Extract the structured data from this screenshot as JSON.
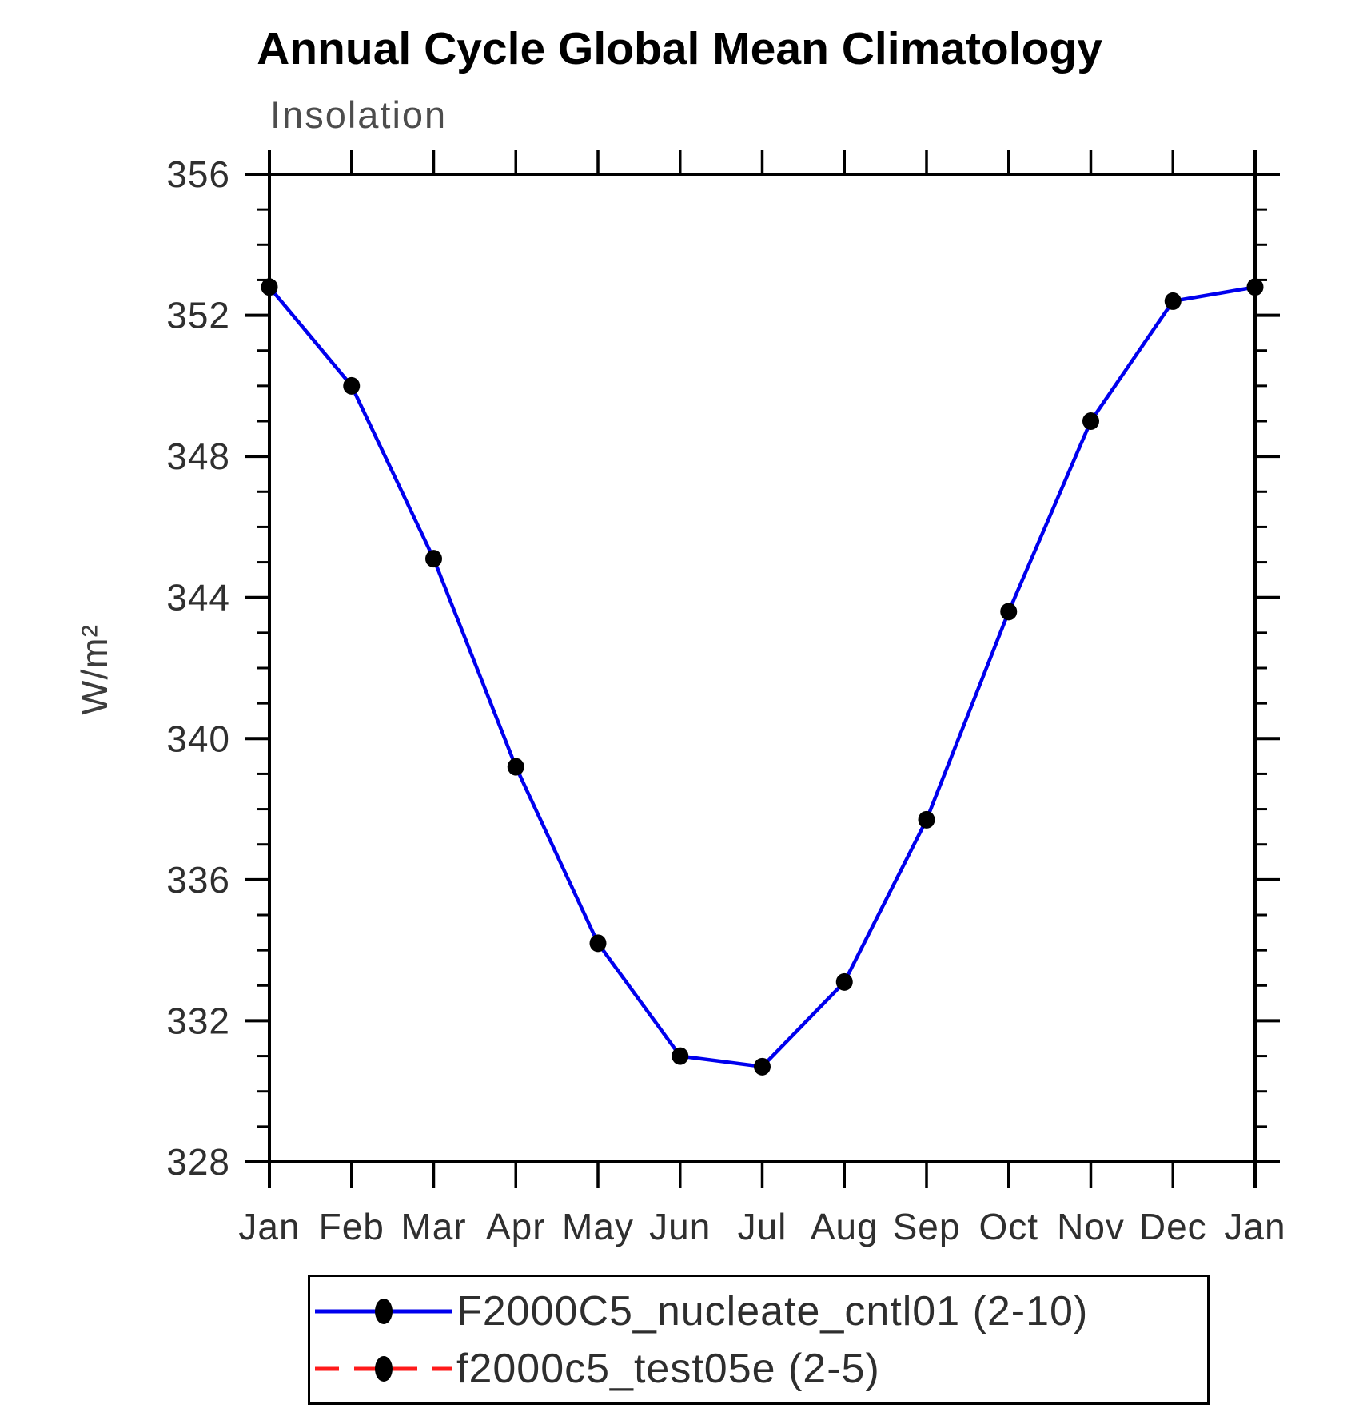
{
  "title": "Annual Cycle Global Mean Climatology",
  "subtitle": "Insolation",
  "y_axis_label": "W/m²",
  "chart_data": {
    "type": "line",
    "title": "Annual Cycle Global Mean Climatology",
    "subtitle": "Insolation",
    "xlabel": "",
    "ylabel": "W/m²",
    "x_categories": [
      "Jan",
      "Feb",
      "Mar",
      "Apr",
      "May",
      "Jun",
      "Jul",
      "Aug",
      "Sep",
      "Oct",
      "Nov",
      "Dec",
      "Jan"
    ],
    "y_min": 328,
    "y_max": 356,
    "y_major_step": 4,
    "y_minor_step": 1,
    "y_major_ticks": [
      356,
      352,
      348,
      344,
      340,
      336,
      332,
      328
    ],
    "grid": false,
    "legend_position": "bottom",
    "axis_color": "#000000",
    "series": [
      {
        "name": "F2000C5_nucleate_cntl01 (2-10)",
        "color": "#0000ee",
        "line_style": "solid",
        "marker": "filled-circle",
        "marker_color": "#000000",
        "values": [
          352.8,
          350.0,
          345.1,
          339.2,
          334.2,
          331.0,
          330.7,
          333.1,
          337.7,
          343.6,
          349.0,
          352.4,
          352.8
        ]
      },
      {
        "name": "f2000c5_test05e (2-5)",
        "color": "#ff1a1a",
        "line_style": "dashed",
        "marker": "filled-circle",
        "marker_color": "#000000",
        "values": []
      }
    ]
  },
  "legend": {
    "entries": [
      {
        "label": "F2000C5_nucleate_cntl01 (2-10)",
        "color": "#0000ee",
        "style": "solid"
      },
      {
        "label": "f2000c5_test05e (2-5)",
        "color": "#ff1a1a",
        "style": "dashed"
      }
    ]
  }
}
